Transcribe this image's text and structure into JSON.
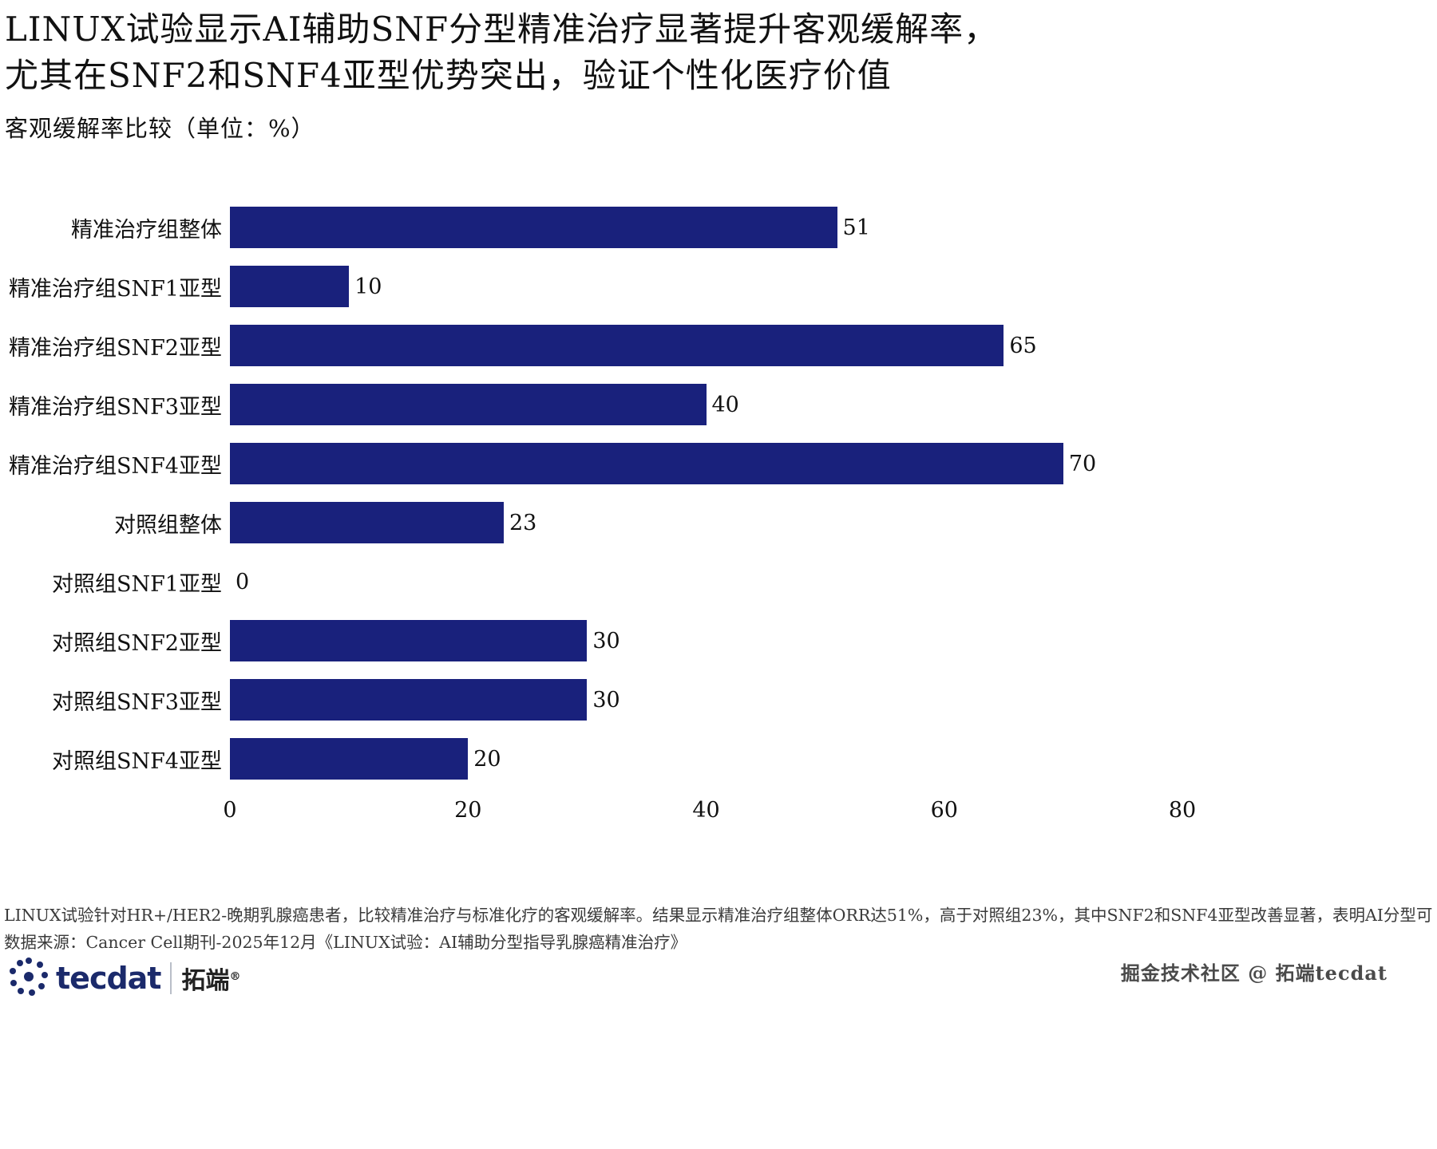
{
  "title": {
    "line1": "LINUX试验显示AI辅助SNF分型精准治疗显著提升客观缓解率，",
    "line2": "尤其在SNF2和SNF4亚型优势突出，验证个性化医疗价值"
  },
  "subtitle": "客观缓解率比较（单位：%）",
  "chart_data": {
    "type": "bar",
    "orientation": "horizontal",
    "title": "客观缓解率比较（单位：%）",
    "categories": [
      "精准治疗组整体",
      "精准治疗组SNF1亚型",
      "精准治疗组SNF2亚型",
      "精准治疗组SNF3亚型",
      "精准治疗组SNF4亚型",
      "对照组整体",
      "对照组SNF1亚型",
      "对照组SNF2亚型",
      "对照组SNF3亚型",
      "对照组SNF4亚型"
    ],
    "values": [
      51,
      10,
      65,
      40,
      70,
      23,
      0,
      30,
      30,
      20
    ],
    "xlabel": "",
    "ylabel": "",
    "xlim": [
      0,
      80
    ],
    "xticks": [
      0,
      20,
      40,
      60,
      80
    ],
    "grid": false,
    "legend": false,
    "value_labels": true,
    "bar_color": "#19217c"
  },
  "footer": {
    "note": "LINUX试验针对HR+/HER2-晚期乳腺癌患者，比较精准治疗与标准化疗的客观缓解率。结果显示精准治疗组整体ORR达51%，高于对照组23%，其中SNF2和SNF4亚型改善显著，表明AI分型可",
    "source": "数据来源：Cancer Cell期刊-2025年12月《LINUX试验：AI辅助分型指导乳腺癌精准治疗》"
  },
  "branding": {
    "logo_text": "tecdat",
    "logo_suffix": "拓端",
    "logo_reg": "®",
    "watermark": "掘金技术社区 @ 拓端tecdat"
  }
}
